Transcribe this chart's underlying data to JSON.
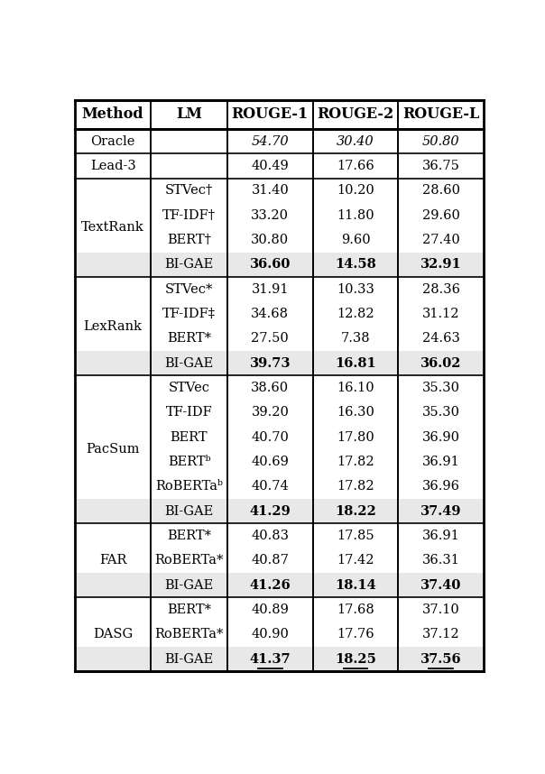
{
  "columns": [
    "Method",
    "LM",
    "ROUGE-1",
    "ROUGE-2",
    "ROUGE-L"
  ],
  "rows": [
    {
      "method": "Oracle",
      "lm": "",
      "r1": "54.70",
      "r2": "30.40",
      "rl": "50.80",
      "method_style": "smallcaps",
      "r1_style": "italic",
      "r2_style": "italic",
      "rl_style": "italic",
      "lm_style": "normal",
      "bg": "white",
      "span_method_lm": true
    },
    {
      "method": "Lead-3",
      "lm": "",
      "r1": "40.49",
      "r2": "17.66",
      "rl": "36.75",
      "method_style": "smallcaps",
      "r1_style": "normal",
      "r2_style": "normal",
      "rl_style": "normal",
      "lm_style": "normal",
      "bg": "white",
      "span_method_lm": true
    },
    {
      "method": "TextRank",
      "lm": "STVec†",
      "r1": "31.40",
      "r2": "10.20",
      "rl": "28.60",
      "method_style": "normal",
      "r1_style": "normal",
      "r2_style": "normal",
      "rl_style": "normal",
      "lm_style": "normal",
      "bg": "white",
      "span_method_lm": false
    },
    {
      "method": "TextRank",
      "lm": "TF-IDF†",
      "r1": "33.20",
      "r2": "11.80",
      "rl": "29.60",
      "method_style": "normal",
      "r1_style": "normal",
      "r2_style": "normal",
      "rl_style": "normal",
      "lm_style": "normal",
      "bg": "white",
      "span_method_lm": false
    },
    {
      "method": "TextRank",
      "lm": "BERT†",
      "r1": "30.80",
      "r2": "9.60",
      "rl": "27.40",
      "method_style": "normal",
      "r1_style": "normal",
      "r2_style": "normal",
      "rl_style": "normal",
      "lm_style": "normal",
      "bg": "white",
      "span_method_lm": false
    },
    {
      "method": "TextRank",
      "lm": "BI-GAE",
      "r1": "36.60",
      "r2": "14.58",
      "rl": "32.91",
      "method_style": "normal",
      "r1_style": "bold",
      "r2_style": "bold",
      "rl_style": "bold",
      "lm_style": "bigae",
      "bg": "#e8e8e8",
      "span_method_lm": false
    },
    {
      "method": "LexRank",
      "lm": "STVec*",
      "r1": "31.91",
      "r2": "10.33",
      "rl": "28.36",
      "method_style": "normal",
      "r1_style": "normal",
      "r2_style": "normal",
      "rl_style": "normal",
      "lm_style": "normal",
      "bg": "white",
      "span_method_lm": false
    },
    {
      "method": "LexRank",
      "lm": "TF-IDF‡",
      "r1": "34.68",
      "r2": "12.82",
      "rl": "31.12",
      "method_style": "normal",
      "r1_style": "normal",
      "r2_style": "normal",
      "rl_style": "normal",
      "lm_style": "normal",
      "bg": "white",
      "span_method_lm": false
    },
    {
      "method": "LexRank",
      "lm": "BERT*",
      "r1": "27.50",
      "r2": "7.38",
      "rl": "24.63",
      "method_style": "normal",
      "r1_style": "normal",
      "r2_style": "normal",
      "rl_style": "normal",
      "lm_style": "normal",
      "bg": "white",
      "span_method_lm": false
    },
    {
      "method": "LexRank",
      "lm": "BI-GAE",
      "r1": "39.73",
      "r2": "16.81",
      "rl": "36.02",
      "method_style": "normal",
      "r1_style": "bold",
      "r2_style": "bold",
      "rl_style": "bold",
      "lm_style": "bigae",
      "bg": "#e8e8e8",
      "span_method_lm": false
    },
    {
      "method": "PacSum",
      "lm": "STVec",
      "r1": "38.60",
      "r2": "16.10",
      "rl": "35.30",
      "method_style": "smallcaps",
      "r1_style": "normal",
      "r2_style": "normal",
      "rl_style": "normal",
      "lm_style": "normal",
      "bg": "white",
      "span_method_lm": false
    },
    {
      "method": "PacSum",
      "lm": "TF-IDF",
      "r1": "39.20",
      "r2": "16.30",
      "rl": "35.30",
      "method_style": "smallcaps",
      "r1_style": "normal",
      "r2_style": "normal",
      "rl_style": "normal",
      "lm_style": "normal",
      "bg": "white",
      "span_method_lm": false
    },
    {
      "method": "PacSum",
      "lm": "BERT",
      "r1": "40.70",
      "r2": "17.80",
      "rl": "36.90",
      "method_style": "smallcaps",
      "r1_style": "normal",
      "r2_style": "normal",
      "rl_style": "normal",
      "lm_style": "normal",
      "bg": "white",
      "span_method_lm": false
    },
    {
      "method": "PacSum",
      "lm": "BERTᵇ",
      "r1": "40.69",
      "r2": "17.82",
      "rl": "36.91",
      "method_style": "smallcaps",
      "r1_style": "normal",
      "r2_style": "normal",
      "rl_style": "normal",
      "lm_style": "normal",
      "bg": "white",
      "span_method_lm": false
    },
    {
      "method": "PacSum",
      "lm": "RoBERTaᵇ",
      "r1": "40.74",
      "r2": "17.82",
      "rl": "36.96",
      "method_style": "smallcaps",
      "r1_style": "normal",
      "r2_style": "normal",
      "rl_style": "normal",
      "lm_style": "normal",
      "bg": "white",
      "span_method_lm": false
    },
    {
      "method": "PacSum",
      "lm": "BI-GAE",
      "r1": "41.29",
      "r2": "18.22",
      "rl": "37.49",
      "method_style": "smallcaps",
      "r1_style": "bold",
      "r2_style": "bold",
      "rl_style": "bold",
      "lm_style": "bigae",
      "bg": "#e8e8e8",
      "span_method_lm": false
    },
    {
      "method": "FAR",
      "lm": "BERT*",
      "r1": "40.83",
      "r2": "17.85",
      "rl": "36.91",
      "method_style": "normal",
      "r1_style": "normal",
      "r2_style": "normal",
      "rl_style": "normal",
      "lm_style": "normal",
      "bg": "white",
      "span_method_lm": false
    },
    {
      "method": "FAR",
      "lm": "RoBERTa*",
      "r1": "40.87",
      "r2": "17.42",
      "rl": "36.31",
      "method_style": "normal",
      "r1_style": "normal",
      "r2_style": "normal",
      "rl_style": "normal",
      "lm_style": "normal",
      "bg": "white",
      "span_method_lm": false
    },
    {
      "method": "FAR",
      "lm": "BI-GAE",
      "r1": "41.26",
      "r2": "18.14",
      "rl": "37.40",
      "method_style": "normal",
      "r1_style": "bold",
      "r2_style": "bold",
      "rl_style": "bold",
      "lm_style": "bigae",
      "bg": "#e8e8e8",
      "span_method_lm": false
    },
    {
      "method": "DASG",
      "lm": "BERT*",
      "r1": "40.89",
      "r2": "17.68",
      "rl": "37.10",
      "method_style": "normal",
      "r1_style": "normal",
      "r2_style": "normal",
      "rl_style": "normal",
      "lm_style": "normal",
      "bg": "white",
      "span_method_lm": false
    },
    {
      "method": "DASG",
      "lm": "RoBERTa*",
      "r1": "40.90",
      "r2": "17.76",
      "rl": "37.12",
      "method_style": "normal",
      "r1_style": "normal",
      "r2_style": "normal",
      "rl_style": "normal",
      "lm_style": "normal",
      "bg": "white",
      "span_method_lm": false
    },
    {
      "method": "DASG",
      "lm": "BI-GAE",
      "r1": "41.37",
      "r2": "18.25",
      "rl": "37.56",
      "method_style": "normal",
      "r1_style": "bold_underline",
      "r2_style": "bold_underline",
      "rl_style": "bold_underline",
      "lm_style": "bigae",
      "bg": "#e8e8e8",
      "span_method_lm": false
    }
  ]
}
